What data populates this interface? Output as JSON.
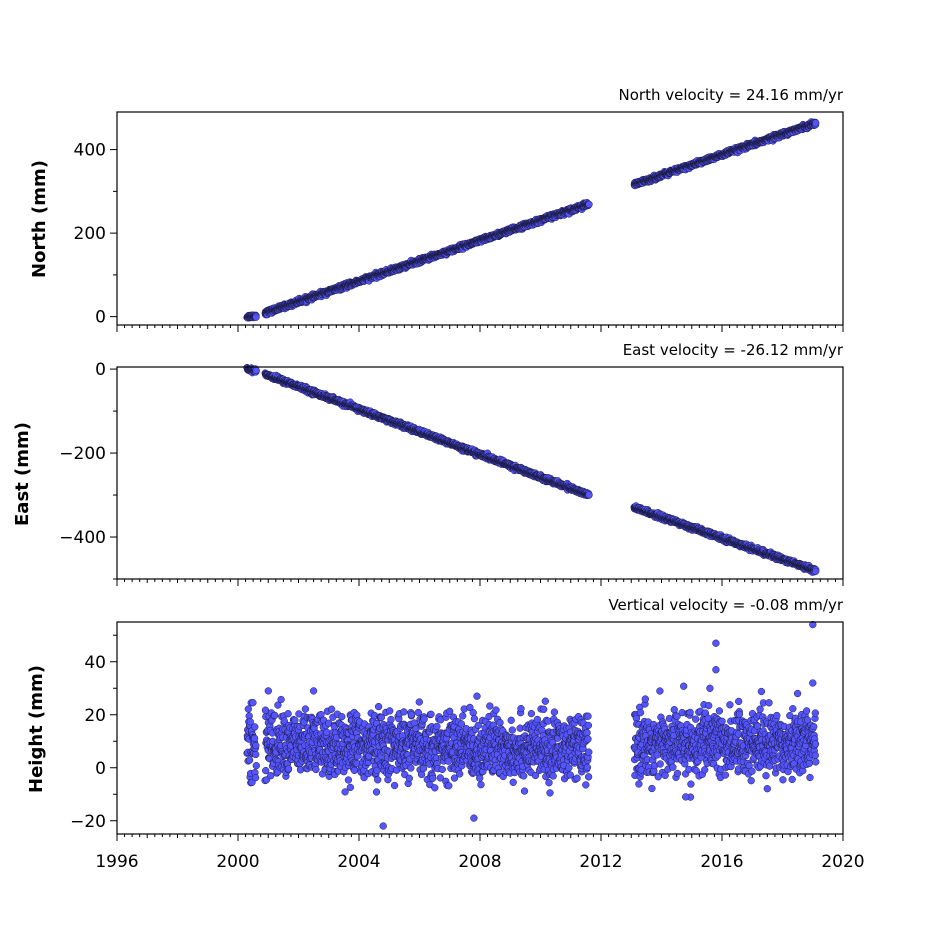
{
  "chart_data": [
    {
      "type": "scatter",
      "title": "North velocity = 24.16 mm/yr",
      "ylabel": "North (mm)",
      "xlim": [
        1996,
        2020
      ],
      "ylim": [
        -20,
        490
      ],
      "yticks": [
        0,
        200,
        400
      ],
      "marker_color": "#5555ff",
      "series": [
        {
          "segments": [
            {
              "x_start": 2000.3,
              "x_end": 2000.6,
              "y_start": 0,
              "y_end": 2,
              "scatter": 2
            },
            {
              "x_start": 2000.9,
              "x_end": 2011.6,
              "y_start": 9,
              "y_end": 270,
              "scatter": 2.5
            },
            {
              "x_start": 2013.1,
              "x_end": 2019.1,
              "y_start": 316,
              "y_end": 464,
              "scatter": 2.5
            }
          ]
        }
      ]
    },
    {
      "type": "scatter",
      "title": "East velocity = -26.12 mm/yr",
      "ylabel": "East (mm)",
      "xlim": [
        1996,
        2020
      ],
      "ylim": [
        -500,
        5
      ],
      "yticks": [
        0,
        -200,
        -400
      ],
      "marker_color": "#5555ff",
      "series": [
        {
          "segments": [
            {
              "x_start": 2000.3,
              "x_end": 2000.6,
              "y_start": 0,
              "y_end": -3,
              "scatter": 2
            },
            {
              "x_start": 2000.9,
              "x_end": 2011.6,
              "y_start": -12,
              "y_end": -300,
              "scatter": 2.5
            },
            {
              "x_start": 2013.1,
              "x_end": 2019.1,
              "y_start": -330,
              "y_end": -480,
              "scatter": 2.5
            }
          ]
        }
      ]
    },
    {
      "type": "scatter",
      "title": "Vertical velocity = -0.08 mm/yr",
      "ylabel": "Height (mm)",
      "xlim": [
        1996,
        2020
      ],
      "ylim": [
        -25,
        55
      ],
      "yticks": [
        -20,
        0,
        20,
        40
      ],
      "xticks": [
        1996,
        2000,
        2004,
        2008,
        2012,
        2016,
        2020
      ],
      "marker_color": "#5555ff",
      "series": [
        {
          "segments": [
            {
              "x_start": 2000.3,
              "x_end": 2000.6,
              "y_start": 9,
              "y_end": 9,
              "scatter": 7
            },
            {
              "x_start": 2000.9,
              "x_end": 2011.6,
              "y_start": 9,
              "y_end": 7,
              "scatter": 6
            },
            {
              "x_start": 2013.1,
              "x_end": 2019.1,
              "y_start": 9,
              "y_end": 10,
              "scatter": 6
            }
          ],
          "outliers": [
            {
              "x": 2004.8,
              "y": -22
            },
            {
              "x": 2007.8,
              "y": -19
            },
            {
              "x": 2015.8,
              "y": 47
            },
            {
              "x": 2015.8,
              "y": 37
            },
            {
              "x": 2019.0,
              "y": 54
            },
            {
              "x": 2019.0,
              "y": 32
            },
            {
              "x": 2014.8,
              "y": -11
            },
            {
              "x": 2002.5,
              "y": 29
            },
            {
              "x": 2001.0,
              "y": 29
            },
            {
              "x": 2007.9,
              "y": 27
            },
            {
              "x": 2015.6,
              "y": 30
            },
            {
              "x": 2018.5,
              "y": 28
            }
          ]
        }
      ]
    }
  ]
}
